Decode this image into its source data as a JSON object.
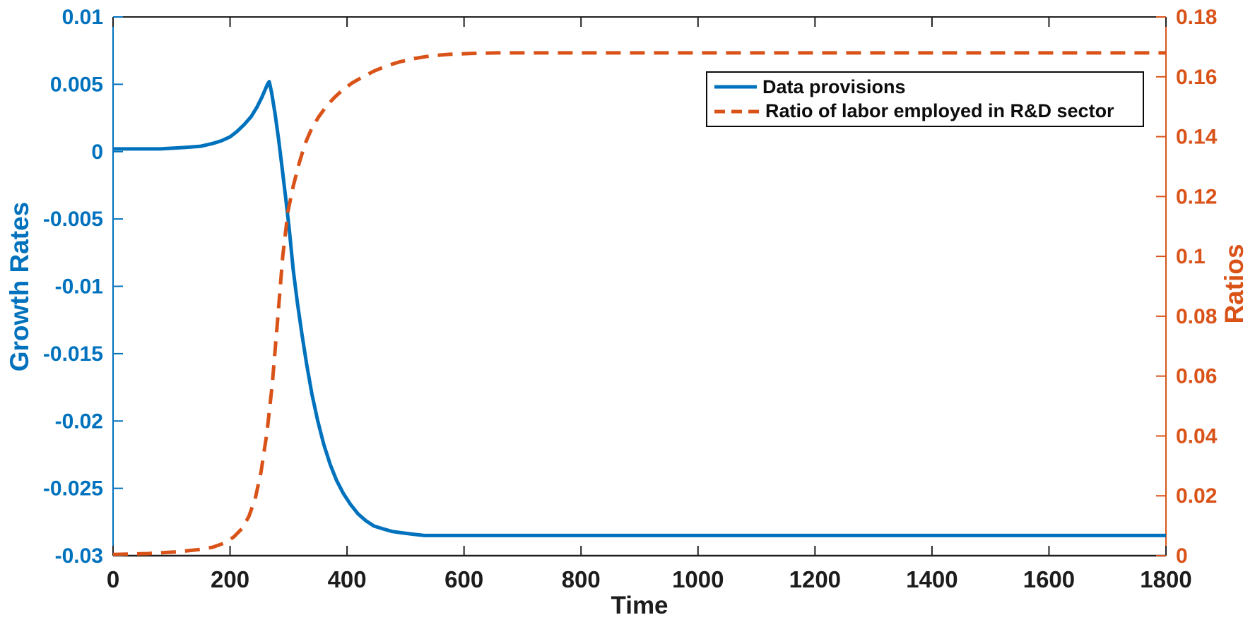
{
  "figure": {
    "background": "#ffffff",
    "frame_color": "#1f1f1f"
  },
  "chart_data": {
    "type": "line",
    "title": "",
    "xlabel": "Time",
    "x_range": [
      0,
      1800
    ],
    "x_tick_values": [
      0,
      200,
      400,
      600,
      800,
      1000,
      1200,
      1400,
      1600,
      1800
    ],
    "x_tick_labels": [
      "0",
      "200",
      "400",
      "600",
      "800",
      "1000",
      "1200",
      "1400",
      "1600",
      "1800"
    ],
    "x_tick_color": "#1c1c1c",
    "grid": false,
    "left_axis": {
      "label": "Growth Rates",
      "color": "#0072BD",
      "range": [
        -0.03,
        0.01
      ],
      "tick_values": [
        0.01,
        0.005,
        0,
        -0.005,
        -0.01,
        -0.015,
        -0.02,
        -0.025,
        -0.03
      ],
      "tick_labels": [
        "0.01",
        "0.005",
        "0",
        "-0.005",
        "-0.01",
        "-0.015",
        "-0.02",
        "-0.025",
        "-0.03"
      ]
    },
    "right_axis": {
      "label": "Ratios",
      "color": "#D95319",
      "range": [
        0,
        0.18
      ],
      "tick_values": [
        0.18,
        0.16,
        0.14,
        0.12,
        0.1,
        0.08,
        0.06,
        0.04,
        0.02,
        0
      ],
      "tick_labels": [
        "0.18",
        "0.16",
        "0.14",
        "0.12",
        "0.1",
        "0.08",
        "0.06",
        "0.04",
        "0.02",
        "0"
      ]
    },
    "legend": {
      "position": "inside-top-right",
      "border_color": "#0a0a0a",
      "entries": [
        {
          "label": "Data provisions",
          "line_style": "solid",
          "color": "#0072BD"
        },
        {
          "label": "Ratio of labor employed in R&D sector",
          "line_style": "dashed",
          "color": "#D95319"
        }
      ]
    },
    "series": [
      {
        "name": "Data provisions",
        "axis": "left",
        "color": "#0072BD",
        "line_style": "solid",
        "line_width": 5,
        "x": [
          0,
          40,
          80,
          120,
          150,
          170,
          185,
          200,
          212,
          224,
          236,
          246,
          254,
          260,
          264,
          267,
          271,
          277,
          283,
          289,
          295,
          301,
          308,
          315,
          323,
          331,
          340,
          350,
          360,
          371,
          382,
          394,
          406,
          419,
          432,
          446,
          461,
          477,
          494,
          512,
          532,
          554,
          578,
          605,
          640,
          690,
          760,
          860,
          1000,
          1200,
          1400,
          1600,
          1800
        ],
        "y": [
          0.0002,
          0.0002,
          0.0002,
          0.0003,
          0.0004,
          0.0006,
          0.0008,
          0.0011,
          0.0015,
          0.002,
          0.0026,
          0.0033,
          0.004,
          0.0046,
          0.005,
          0.0052,
          0.0044,
          0.0028,
          0.0009,
          -0.0012,
          -0.0034,
          -0.0057,
          -0.0088,
          -0.0112,
          -0.0136,
          -0.0158,
          -0.018,
          -0.02,
          -0.0217,
          -0.0232,
          -0.0244,
          -0.0254,
          -0.0262,
          -0.0269,
          -0.0274,
          -0.0278,
          -0.028,
          -0.0282,
          -0.0283,
          -0.0284,
          -0.0285,
          -0.0285,
          -0.0285,
          -0.0285,
          -0.0285,
          -0.0285,
          -0.0285,
          -0.0285,
          -0.0285,
          -0.0285,
          -0.0285,
          -0.0285,
          -0.0285
        ]
      },
      {
        "name": "Ratio of labor employed in R&D sector",
        "axis": "right",
        "color": "#D95319",
        "line_style": "dashed",
        "line_width": 5,
        "dash_pattern": [
          21,
          13
        ],
        "x": [
          0,
          60,
          110,
          145,
          170,
          190,
          206,
          220,
          232,
          243,
          253,
          263,
          272,
          281,
          290,
          299,
          308,
          318,
          328,
          339,
          351,
          364,
          378,
          393,
          409,
          427,
          446,
          467,
          490,
          515,
          543,
          574,
          610,
          655,
          710,
          780,
          870,
          1000,
          1200,
          1400,
          1600,
          1800
        ],
        "y": [
          0.0004,
          0.0007,
          0.0013,
          0.002,
          0.0028,
          0.0042,
          0.0062,
          0.009,
          0.013,
          0.019,
          0.028,
          0.041,
          0.057,
          0.078,
          0.1,
          0.115,
          0.1235,
          0.131,
          0.1375,
          0.1425,
          0.1465,
          0.15,
          0.153,
          0.1557,
          0.158,
          0.16,
          0.1619,
          0.1636,
          0.165,
          0.1661,
          0.167,
          0.1675,
          0.1678,
          0.168,
          0.168,
          0.168,
          0.168,
          0.168,
          0.168,
          0.168,
          0.168,
          0.168
        ]
      }
    ]
  }
}
